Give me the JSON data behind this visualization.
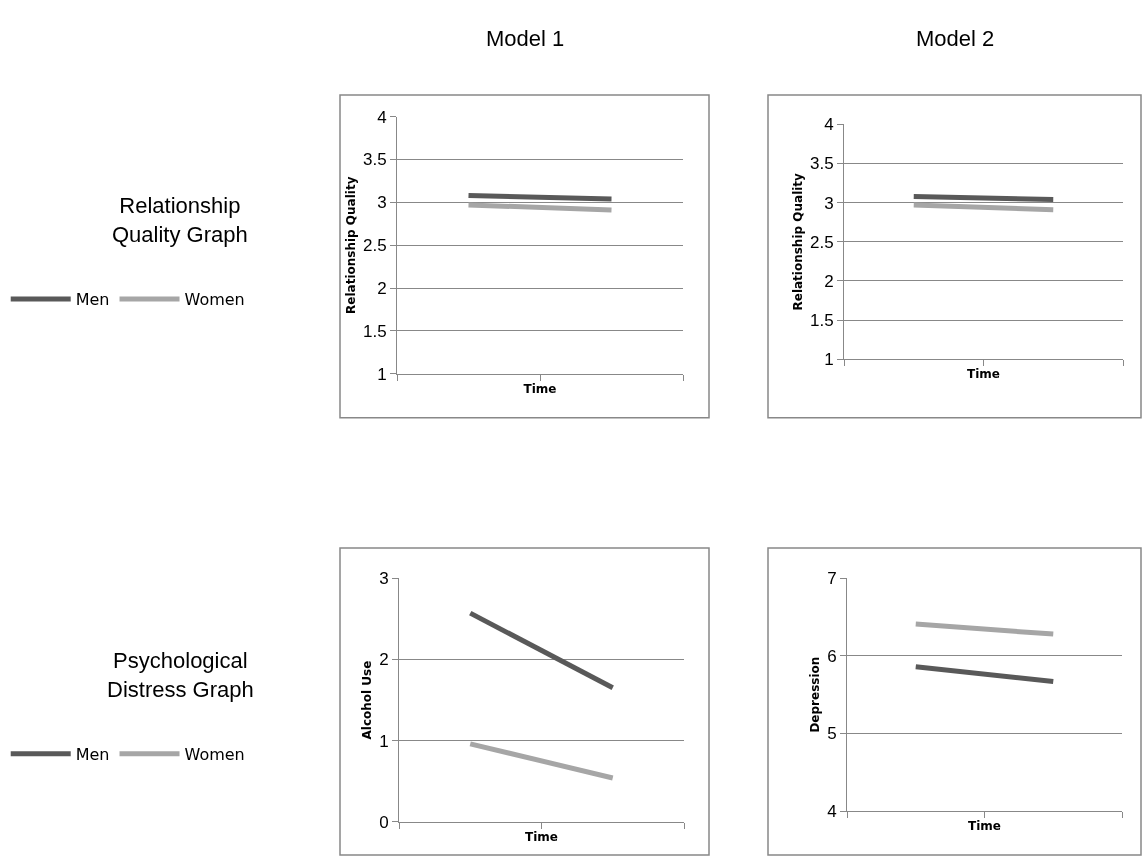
{
  "chart_data": [
    {
      "type": "line",
      "title": "Model 1",
      "annotations": [
        "Relationship Quality Graph"
      ],
      "xlabel": "Time",
      "ylabel": "Relationship Quality",
      "categories": [
        null,
        null
      ],
      "ylim": [
        1,
        4
      ],
      "yticks": [
        1,
        1.5,
        2,
        2.5,
        3,
        3.5,
        4
      ],
      "grid": "y",
      "legend": "left",
      "tick_labels": "y",
      "series": [
        {
          "name": "Men",
          "color": "#595959",
          "values": [
            3.08,
            3.04
          ]
        },
        {
          "name": "Women",
          "color": "#a6a6a6",
          "values": [
            2.97,
            2.91
          ]
        }
      ]
    },
    {
      "type": "line",
      "title": "Model 2",
      "xlabel": "Time",
      "ylabel": "Relationship Quality",
      "categories": [
        null,
        null
      ],
      "ylim": [
        1,
        4
      ],
      "yticks": [
        1,
        1.5,
        2,
        2.5,
        3,
        3.5,
        4
      ],
      "grid": "y",
      "tick_labels": "y",
      "series": [
        {
          "color": "#595959",
          "values": [
            3.08,
            3.04
          ]
        },
        {
          "color": "#a6a6a6",
          "values": [
            2.97,
            2.91
          ]
        }
      ]
    },
    {
      "type": "line",
      "annotations": [
        "Psychological Distress Graph"
      ],
      "xlabel": "Time",
      "ylabel": "Alcohol Use",
      "categories": [
        null,
        null
      ],
      "ylim": [
        0,
        3
      ],
      "yticks": [
        0,
        1,
        2,
        3
      ],
      "grid": "y",
      "legend": "left",
      "tick_labels": "y",
      "series": [
        {
          "name": "Men",
          "color": "#595959",
          "values": [
            2.57,
            1.65
          ]
        },
        {
          "name": "Women",
          "color": "#a6a6a6",
          "values": [
            0.96,
            0.54
          ]
        }
      ]
    },
    {
      "type": "line",
      "xlabel": "Time",
      "ylabel": "Depression",
      "categories": [
        null,
        null
      ],
      "ylim": [
        4,
        7
      ],
      "yticks": [
        4,
        5,
        6,
        7
      ],
      "grid": "y",
      "tick_labels": "y",
      "series": [
        {
          "color": "#595959",
          "values": [
            5.86,
            5.67
          ]
        },
        {
          "color": "#a6a6a6",
          "values": [
            6.41,
            6.28
          ]
        }
      ]
    }
  ]
}
